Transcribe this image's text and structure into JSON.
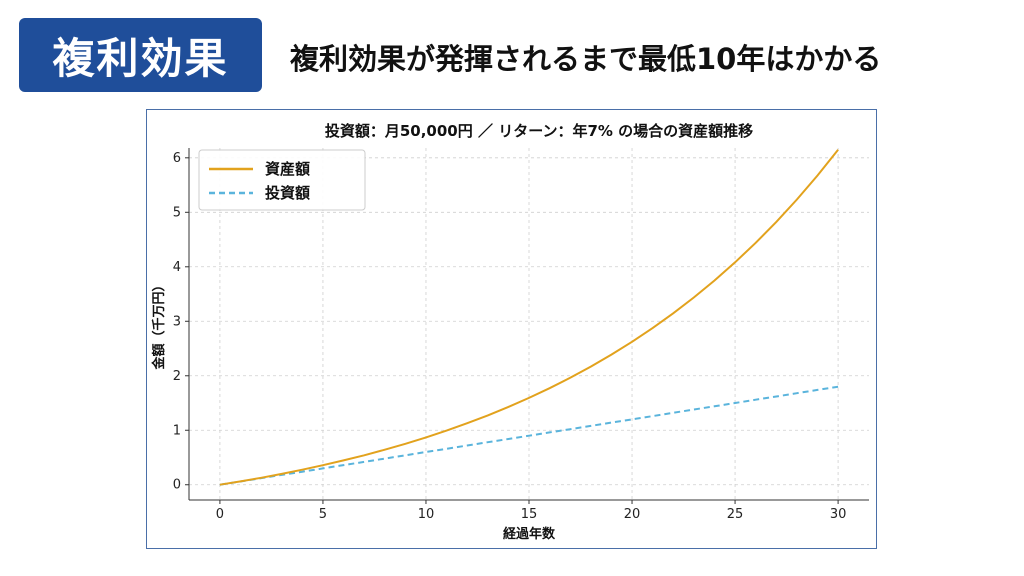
{
  "header": {
    "badge": "複利効果",
    "headline": "複利効果が発揮されるまで最低10年はかかる"
  },
  "colors": {
    "badge_bg": "#1f4e9a",
    "asset_line": "#e2a21d",
    "invest_line": "#5ab4dc",
    "frame_border": "#4a6fa8"
  },
  "chart_data": {
    "type": "line",
    "title": "投資額：月50,000円 ／ リターン：年7% の場合の資産額推移",
    "xlabel": "経過年数",
    "ylabel": "金額（千万円）",
    "xlim": [
      -1.5,
      31.5
    ],
    "ylim": [
      -0.28,
      6.18
    ],
    "xticks": [
      0,
      5,
      10,
      15,
      20,
      25,
      30
    ],
    "yticks": [
      0,
      1,
      2,
      3,
      4,
      5,
      6
    ],
    "grid": true,
    "legend_position": "top-left",
    "x": [
      0,
      1,
      2,
      3,
      4,
      5,
      6,
      7,
      8,
      9,
      10,
      11,
      12,
      13,
      14,
      15,
      16,
      17,
      18,
      19,
      20,
      21,
      22,
      23,
      24,
      25,
      26,
      27,
      28,
      29,
      30
    ],
    "series": [
      {
        "name": "資産額",
        "style": "solid",
        "color": "#e2a21d",
        "values": [
          0,
          0.062,
          0.128,
          0.199,
          0.276,
          0.358,
          0.446,
          0.541,
          0.643,
          0.752,
          0.869,
          0.994,
          1.129,
          1.273,
          1.428,
          1.594,
          1.772,
          1.963,
          2.168,
          2.388,
          2.623,
          2.875,
          3.146,
          3.437,
          3.748,
          4.082,
          4.44,
          4.824,
          5.235,
          5.676,
          6.149
        ]
      },
      {
        "name": "投資額",
        "style": "dashed",
        "color": "#5ab4dc",
        "values": [
          0,
          0.06,
          0.12,
          0.18,
          0.24,
          0.3,
          0.36,
          0.42,
          0.48,
          0.54,
          0.6,
          0.66,
          0.72,
          0.78,
          0.84,
          0.9,
          0.96,
          1.02,
          1.08,
          1.14,
          1.2,
          1.26,
          1.32,
          1.38,
          1.44,
          1.5,
          1.56,
          1.62,
          1.68,
          1.74,
          1.8
        ]
      }
    ]
  }
}
